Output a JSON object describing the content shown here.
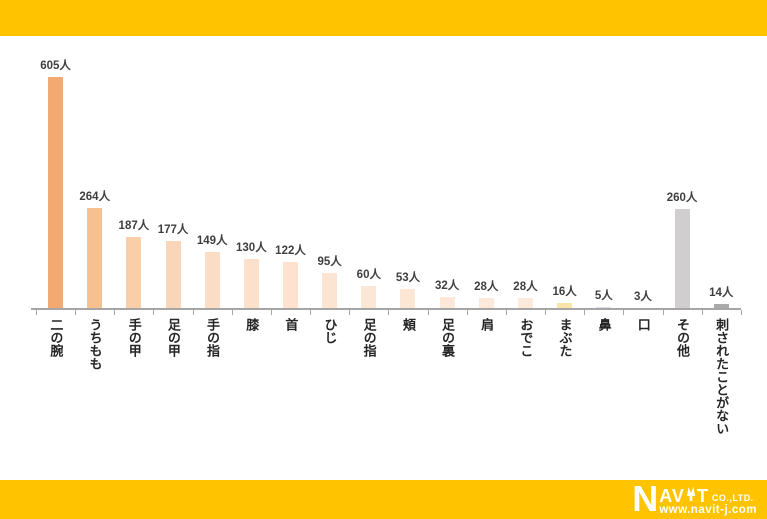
{
  "page": {
    "background": "#FFFFFF",
    "band_color": "#FFC300"
  },
  "chart_data": {
    "type": "bar",
    "title": "",
    "unit": "人",
    "categories": [
      "二の腕",
      "うちもも",
      "手の甲",
      "足の甲",
      "手の指",
      "膝",
      "首",
      "ひじ",
      "足の指",
      "頬",
      "足の裏",
      "肩",
      "おでこ",
      "まぶた",
      "鼻",
      "口",
      "その他",
      "刺されたことがない"
    ],
    "values": [
      605,
      264,
      187,
      177,
      149,
      130,
      122,
      95,
      60,
      53,
      32,
      28,
      28,
      16,
      5,
      3,
      260,
      14
    ],
    "value_labels": [
      "605人",
      "264人",
      "187人",
      "177人",
      "149人",
      "130人",
      "122人",
      "95人",
      "60人",
      "53人",
      "32人",
      "28人",
      "28人",
      "16人",
      "5人",
      "3人",
      "260人",
      "14人"
    ],
    "bar_colors": [
      "#F2A972",
      "#F6C091",
      "#F9CEA9",
      "#FAD6B9",
      "#FBDDC5",
      "#FBE0CB",
      "#FCE2CF",
      "#FCE4D2",
      "#FCE6D5",
      "#FCE7D7",
      "#FDE8D9",
      "#FDE9DA",
      "#FDEADB",
      "#FAE4A9",
      "#D9DEE7",
      "#E6E6E6",
      "#D0CECE",
      "#A9A9A9"
    ],
    "ylim": [
      0,
      650
    ],
    "grid": false,
    "legend": false,
    "axis_color": "#A6A6A6",
    "value_label_color": "#3F3F3F",
    "category_label_color": "#262626"
  },
  "footer": {
    "logo_n": "N",
    "logo_av": "AV",
    "logo_t": "T",
    "logo_suffix": "CO.,LTD.",
    "url": "www.navit-j.com"
  }
}
